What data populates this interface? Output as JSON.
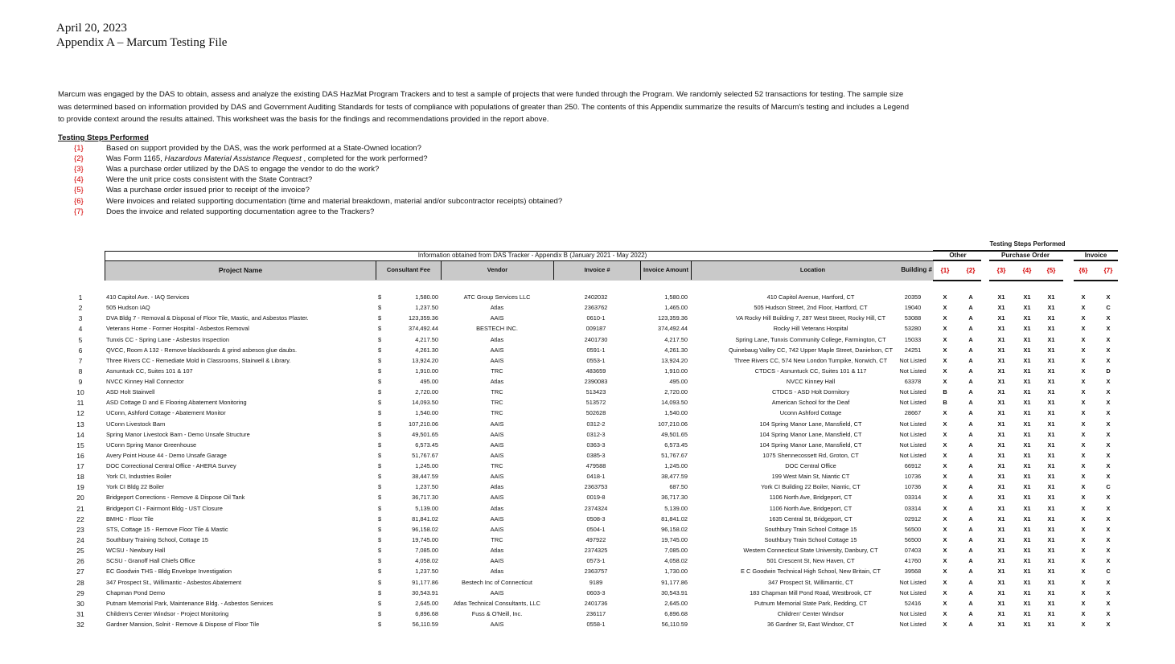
{
  "header": {
    "date": "April 20, 2023",
    "title": "Appendix A – Marcum Testing File"
  },
  "intro": "Marcum was engaged by the DAS to obtain, assess and analyze the existing DAS HazMat Program Trackers and to test a sample of projects that were funded through the Program.  We randomly selected 52 transactions for testing.  The sample size was determined based on information provided by DAS and Government Auditing Standards for tests of compliance with populations of greater than 250.  The contents of this Appendix summarize the results of Marcum's testing and includes a Legend to provide context around the results attained.  This worksheet was the basis for the findings and recommendations provided in the report above.",
  "steps": {
    "heading": "Testing Steps Performed",
    "items": [
      {
        "num": "{1}",
        "text": "Based on support provided by the DAS, was the work performed at a State-Owned location?"
      },
      {
        "num": "{2}",
        "pre": "Was Form 1165, ",
        "em": "Hazardous Material Assistance Request",
        "post": " , completed for the work performed?"
      },
      {
        "num": "{3}",
        "text": "Was a purchase order utilized by the DAS to engage the vendor to do the work?"
      },
      {
        "num": "{4}",
        "text": "Were the unit price costs consistent with the State Contract?"
      },
      {
        "num": "{5}",
        "text": "Was a purchase order issued prior to receipt of the invoice?"
      },
      {
        "num": "{6}",
        "text": "Were invoices and related supporting documentation (time and material breakdown, material and/or subcontractor receipts) obtained?"
      },
      {
        "num": "{7}",
        "text": "Does the invoice and related supporting documentation agree to the Trackers?"
      }
    ]
  },
  "table": {
    "info_caption": "Information obtained from DAS Tracker - Appendix B (January 2021 - May 2022)",
    "testing_caption": "Testing Steps Performed",
    "groups": {
      "other": "Other",
      "po": "Purchase Order",
      "invoice": "Invoice"
    },
    "columns": {
      "project": "Project Name",
      "fee": "Consultant Fee",
      "vendor": "Vendor",
      "invoice": "Invoice #",
      "amount": "Invoice Amount",
      "location": "Location",
      "building": "Building #",
      "steps": [
        "{1}",
        "{2}",
        "{3}",
        "{4}",
        "{5}",
        "{6}",
        "{7}"
      ]
    },
    "currency": "$",
    "rows": [
      {
        "n": "1",
        "project": "410 Capitol Ave. - IAQ Services",
        "fee": "1,580.00",
        "vendor": "ATC Group Services LLC",
        "invoice": "2402032",
        "amount": "1,580.00",
        "location": "410 Capitol Avenue, Hartford, CT",
        "building": "20359",
        "flags": [
          "X",
          "A",
          "X1",
          "X1",
          "X1",
          "X",
          "X"
        ]
      },
      {
        "n": "2",
        "project": "505 Hudson IAQ",
        "fee": "1,237.50",
        "vendor": "Atlas",
        "invoice": "2363762",
        "amount": "1,465.00",
        "location": "505 Hudson Street, 2nd Floor, Hartford, CT",
        "building": "19040",
        "flags": [
          "X",
          "A",
          "X1",
          "X1",
          "X1",
          "X",
          "C"
        ]
      },
      {
        "n": "3",
        "project": "DVA Bldg 7 - Removal & Disposal of Floor Tile, Mastic, and Asbestos Plaster.",
        "fee": "123,359.36",
        "vendor": "AAIS",
        "invoice": "0610-1",
        "amount": "123,359.36",
        "location": "VA Rocky Hill Building 7, 287 West Street, Rocky Hill, CT",
        "building": "53088",
        "flags": [
          "X",
          "A",
          "X1",
          "X1",
          "X1",
          "X",
          "X"
        ]
      },
      {
        "n": "4",
        "project": "Veterans Home - Former Hospital - Asbestos Removal",
        "fee": "374,492.44",
        "vendor": "BESTECH INC.",
        "invoice": "009187",
        "amount": "374,492.44",
        "location": "Rocky Hill Veterans Hospital",
        "building": "53280",
        "flags": [
          "X",
          "A",
          "X1",
          "X1",
          "X1",
          "X",
          "X"
        ]
      },
      {
        "n": "5",
        "project": "Tunxis CC - Spring Lane - Asbestos Inspection",
        "fee": "4,217.50",
        "vendor": "Atlas",
        "invoice": "2401730",
        "amount": "4,217.50",
        "location": "Spring Lane, Tunxis Community College, Farmington, CT",
        "building": "15033",
        "flags": [
          "X",
          "A",
          "X1",
          "X1",
          "X1",
          "X",
          "X"
        ]
      },
      {
        "n": "6",
        "project": "QVCC, Room A 132 - Remove blackboards & grind asbesos glue daubs.",
        "fee": "4,261.30",
        "vendor": "AAIS",
        "invoice": "0591-1",
        "amount": "4,261.30",
        "location": "Quinebaug Valley CC, 742 Upper Maple Street, Danielson, CT",
        "building": "24251",
        "flags": [
          "X",
          "A",
          "X1",
          "X1",
          "X1",
          "X",
          "X"
        ]
      },
      {
        "n": "7",
        "project": "Three Rivers CC - Remediate Mold in Classrooms, Stairwell & Library.",
        "fee": "13,924.20",
        "vendor": "AAIS",
        "invoice": "0553-1",
        "amount": "13,924.20",
        "location": "Three Rivers CC, 574 New London Turnpike, Norwich, CT",
        "building": "Not Listed",
        "flags": [
          "X",
          "A",
          "X1",
          "X1",
          "X1",
          "X",
          "X"
        ]
      },
      {
        "n": "8",
        "project": "Asnuntuck CC, Suites 101 & 107",
        "fee": "1,910.00",
        "vendor": "TRC",
        "invoice": "483659",
        "amount": "1,910.00",
        "location": "CTDCS - Asnuntuck CC, Suites 101 & 117",
        "building": "Not Listed",
        "flags": [
          "X",
          "A",
          "X1",
          "X1",
          "X1",
          "X",
          "D"
        ]
      },
      {
        "n": "9",
        "project": "NVCC Kinney Hall Connector",
        "fee": "495.00",
        "vendor": "Atlas",
        "invoice": "2390083",
        "amount": "495.00",
        "location": "NVCC Kinney Hall",
        "building": "63378",
        "flags": [
          "X",
          "A",
          "X1",
          "X1",
          "X1",
          "X",
          "X"
        ]
      },
      {
        "n": "10",
        "project": "ASD Holt Stairwell",
        "fee": "2,720.00",
        "vendor": "TRC",
        "invoice": "513423",
        "amount": "2,720.00",
        "location": "CTDCS - ASD Holt Dormitory",
        "building": "Not Listed",
        "flags": [
          "B",
          "A",
          "X1",
          "X1",
          "X1",
          "X",
          "X"
        ]
      },
      {
        "n": "11",
        "project": "ASD Cottage D and E Flooring Abatement Monitoring",
        "fee": "14,093.50",
        "vendor": "TRC",
        "invoice": "513572",
        "amount": "14,093.50",
        "location": "American School for the Deaf",
        "building": "Not Listed",
        "flags": [
          "B",
          "A",
          "X1",
          "X1",
          "X1",
          "X",
          "X"
        ]
      },
      {
        "n": "12",
        "project": "UConn, Ashford Cottage - Abatement Monitor",
        "fee": "1,540.00",
        "vendor": "TRC",
        "invoice": "502628",
        "amount": "1,540.00",
        "location": "Uconn Ashford Cottage",
        "building": "28667",
        "flags": [
          "X",
          "A",
          "X1",
          "X1",
          "X1",
          "X",
          "X"
        ]
      },
      {
        "n": "13",
        "project": "UConn Livestock Barn",
        "fee": "107,210.06",
        "vendor": "AAIS",
        "invoice": "0312-2",
        "amount": "107,210.06",
        "location": "104 Spring Manor Lane, Mansfield, CT",
        "building": "Not Listed",
        "flags": [
          "X",
          "A",
          "X1",
          "X1",
          "X1",
          "X",
          "X"
        ]
      },
      {
        "n": "14",
        "project": "Spring Manor Livestock Barn - Demo Unsafe Structure",
        "fee": "49,501.65",
        "vendor": "AAIS",
        "invoice": "0312-3",
        "amount": "49,501.65",
        "location": "104 Spring Manor Lane, Mansfield, CT",
        "building": "Not Listed",
        "flags": [
          "X",
          "A",
          "X1",
          "X1",
          "X1",
          "X",
          "X"
        ]
      },
      {
        "n": "15",
        "project": "UConn Spring Manor Greenhouse",
        "fee": "6,573.45",
        "vendor": "AAIS",
        "invoice": "0363-3",
        "amount": "6,573.45",
        "location": "104 Spring Manor Lane, Mansfield, CT",
        "building": "Not Listed",
        "flags": [
          "X",
          "A",
          "X1",
          "X1",
          "X1",
          "X",
          "X"
        ]
      },
      {
        "n": "16",
        "project": "Avery Point House 44 - Demo Unsafe Garage",
        "fee": "51,767.67",
        "vendor": "AAIS",
        "invoice": "0385-3",
        "amount": "51,767.67",
        "location": "1075 Shennecossett Rd, Groton, CT",
        "building": "Not Listed",
        "flags": [
          "X",
          "A",
          "X1",
          "X1",
          "X1",
          "X",
          "X"
        ]
      },
      {
        "n": "17",
        "project": "DOC Correctional Central Office - AHERA Survey",
        "fee": "1,245.00",
        "vendor": "TRC",
        "invoice": "479588",
        "amount": "1,245.00",
        "location": "DOC Central Office",
        "building": "66912",
        "flags": [
          "X",
          "A",
          "X1",
          "X1",
          "X1",
          "X",
          "X"
        ]
      },
      {
        "n": "18",
        "project": "York CI, Industries Boiler",
        "fee": "38,447.59",
        "vendor": "AAIS",
        "invoice": "0418-1",
        "amount": "38,477.59",
        "location": "199 West Main St, Niantic CT",
        "building": "10736",
        "flags": [
          "X",
          "A",
          "X1",
          "X1",
          "X1",
          "X",
          "X"
        ]
      },
      {
        "n": "19",
        "project": "York CI Bldg 22 Boiler",
        "fee": "1,237.50",
        "vendor": "Atlas",
        "invoice": "2363753",
        "amount": "687.50",
        "location": "York CI Building 22 Boiler, Niantic, CT",
        "building": "10736",
        "flags": [
          "X",
          "A",
          "X1",
          "X1",
          "X1",
          "X",
          "C"
        ]
      },
      {
        "n": "20",
        "project": "Bridgeport Corrections - Remove & Dispose Oil Tank",
        "fee": "36,717.30",
        "vendor": "AAIS",
        "invoice": "0019-8",
        "amount": "36,717.30",
        "location": "1106 North Ave, Bridgeport, CT",
        "building": "03314",
        "flags": [
          "X",
          "A",
          "X1",
          "X1",
          "X1",
          "X",
          "X"
        ]
      },
      {
        "n": "21",
        "project": "Bridgeport CI - Fairmont Bldg - UST Closure",
        "fee": "5,139.00",
        "vendor": "Atlas",
        "invoice": "2374324",
        "amount": "5,139.00",
        "location": "1106 North Ave, Bridgeport, CT",
        "building": "03314",
        "flags": [
          "X",
          "A",
          "X1",
          "X1",
          "X1",
          "X",
          "X"
        ]
      },
      {
        "n": "22",
        "project": "BMHC - Floor Tile",
        "fee": "81,841.02",
        "vendor": "AAIS",
        "invoice": "0508-3",
        "amount": "81,841.02",
        "location": "1635 Central St, Bridgeport, CT",
        "building": "02912",
        "flags": [
          "X",
          "A",
          "X1",
          "X1",
          "X1",
          "X",
          "X"
        ]
      },
      {
        "n": "23",
        "project": "STS, Cottage 15 - Remove Floor Tile & Mastic",
        "fee": "96,158.02",
        "vendor": "AAIS",
        "invoice": "0504-1",
        "amount": "96,158.02",
        "location": "Southbury Train School Cottage 15",
        "building": "56500",
        "flags": [
          "X",
          "A",
          "X1",
          "X1",
          "X1",
          "X",
          "X"
        ]
      },
      {
        "n": "24",
        "project": "Southbury Training School, Cottage 15",
        "fee": "19,745.00",
        "vendor": "TRC",
        "invoice": "497922",
        "amount": "19,745.00",
        "location": "Southbury Train School Cottage 15",
        "building": "56500",
        "flags": [
          "X",
          "A",
          "X1",
          "X1",
          "X1",
          "X",
          "X"
        ]
      },
      {
        "n": "25",
        "project": "WCSU - Newbury Hall",
        "fee": "7,085.00",
        "vendor": "Atlas",
        "invoice": "2374325",
        "amount": "7,085.00",
        "location": "Western Connecticut State University, Danbury, CT",
        "building": "07403",
        "flags": [
          "X",
          "A",
          "X1",
          "X1",
          "X1",
          "X",
          "X"
        ]
      },
      {
        "n": "26",
        "project": "SCSU - Granoff Hall Chiefs Office",
        "fee": "4,058.02",
        "vendor": "AAIS",
        "invoice": "0573-1",
        "amount": "4,058.02",
        "location": "501 Crescent St, New Haven, CT",
        "building": "41760",
        "flags": [
          "X",
          "A",
          "X1",
          "X1",
          "X1",
          "X",
          "X"
        ]
      },
      {
        "n": "27",
        "project": "EC Goodwin THS  - Bldg Envelope Investigation",
        "fee": "1,237.50",
        "vendor": "Atlas",
        "invoice": "2363757",
        "amount": "1,730.00",
        "location": "E C Goodwin Technical High School, New Britain, CT",
        "building": "39568",
        "flags": [
          "X",
          "A",
          "X1",
          "X1",
          "X1",
          "X",
          "C"
        ]
      },
      {
        "n": "28",
        "project": "347 Prospect St., Willimantic - Asbestos Abatement",
        "fee": "91,177.86",
        "vendor": "Bestech Inc of Connecticut",
        "invoice": "9189",
        "amount": "91,177.86",
        "location": "347 Prospect St, Willimantic, CT",
        "building": "Not Listed",
        "flags": [
          "X",
          "A",
          "X1",
          "X1",
          "X1",
          "X",
          "X"
        ]
      },
      {
        "n": "29",
        "project": "Chapman Pond Demo",
        "fee": "30,543.91",
        "vendor": "AAIS",
        "invoice": "0603-3",
        "amount": "30,543.91",
        "location": "183 Chapman Mill Pond Road, Westbrook, CT",
        "building": "Not Listed",
        "flags": [
          "X",
          "A",
          "X1",
          "X1",
          "X1",
          "X",
          "X"
        ]
      },
      {
        "n": "30",
        "project": "Putnam Memorial Park, Maintenance Bldg. - Asbestos Services",
        "fee": "2,645.00",
        "vendor": "Atlas Technical Consultants, LLC",
        "invoice": "2401736",
        "amount": "2,645.00",
        "location": "Putnum Memorial State Park, Redding, CT",
        "building": "52416",
        "flags": [
          "X",
          "A",
          "X1",
          "X1",
          "X1",
          "X",
          "X"
        ]
      },
      {
        "n": "31",
        "project": "Children's Center Windsor - Project Monitoring",
        "fee": "6,896.68",
        "vendor": "Fuss & O'Neill, Inc.",
        "invoice": "236117",
        "amount": "6,896.68",
        "location": "Children' Center Windsor",
        "building": "Not Listed",
        "flags": [
          "X",
          "A",
          "X1",
          "X1",
          "X1",
          "X",
          "X"
        ]
      },
      {
        "n": "32",
        "project": "Gardner Mansion, Solnit - Remove & Dispose of Floor Tile",
        "fee": "56,110.59",
        "vendor": "AAIS",
        "invoice": "0558-1",
        "amount": "56,110.59",
        "location": "36 Gardner St, East Windsor, CT",
        "building": "Not Listed",
        "flags": [
          "X",
          "A",
          "X1",
          "X1",
          "X1",
          "X",
          "X"
        ]
      }
    ]
  },
  "colors": {
    "step_red": "#d40000",
    "header_gray": "#c9c9c9"
  }
}
